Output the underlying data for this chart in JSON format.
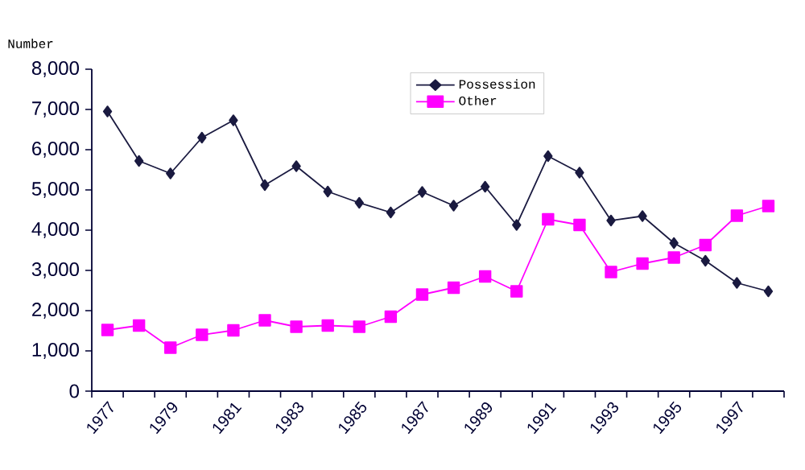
{
  "chart_data": {
    "type": "line",
    "ylabel": "Number",
    "categories": [
      "1977",
      null,
      "1979",
      null,
      "1981",
      null,
      "1983",
      null,
      "1985",
      null,
      "1987",
      null,
      "1989",
      null,
      "1991",
      null,
      "1993",
      null,
      "1995",
      null,
      "1997",
      null
    ],
    "series": [
      {
        "name": "Possession",
        "color": "#1a1a40",
        "marker": "diamond",
        "values": [
          6950,
          5720,
          5410,
          6300,
          6730,
          5120,
          5590,
          4960,
          4680,
          4440,
          4950,
          4610,
          5080,
          4130,
          5840,
          5430,
          4240,
          4350,
          3680,
          3240,
          2690,
          2480
        ]
      },
      {
        "name": "Other",
        "color": "#ff00ff",
        "marker": "square",
        "values": [
          1520,
          1630,
          1080,
          1400,
          1510,
          1760,
          1600,
          1630,
          1600,
          1850,
          2400,
          2570,
          2850,
          2480,
          4270,
          4130,
          2960,
          3170,
          3320,
          3630,
          4360,
          4600
        ]
      }
    ],
    "ylim": [
      0,
      8000
    ],
    "yticks": [
      {
        "value": 0,
        "label": "0"
      },
      {
        "value": 1000,
        "label": "1,000"
      },
      {
        "value": 2000,
        "label": "2,000"
      },
      {
        "value": 3000,
        "label": "3,000"
      },
      {
        "value": 4000,
        "label": "4,000"
      },
      {
        "value": 5000,
        "label": "5,000"
      },
      {
        "value": 6000,
        "label": "6,000"
      },
      {
        "value": 7000,
        "label": "7,000"
      },
      {
        "value": 8000,
        "label": "8,000"
      }
    ],
    "legend": "top",
    "grid": false
  }
}
